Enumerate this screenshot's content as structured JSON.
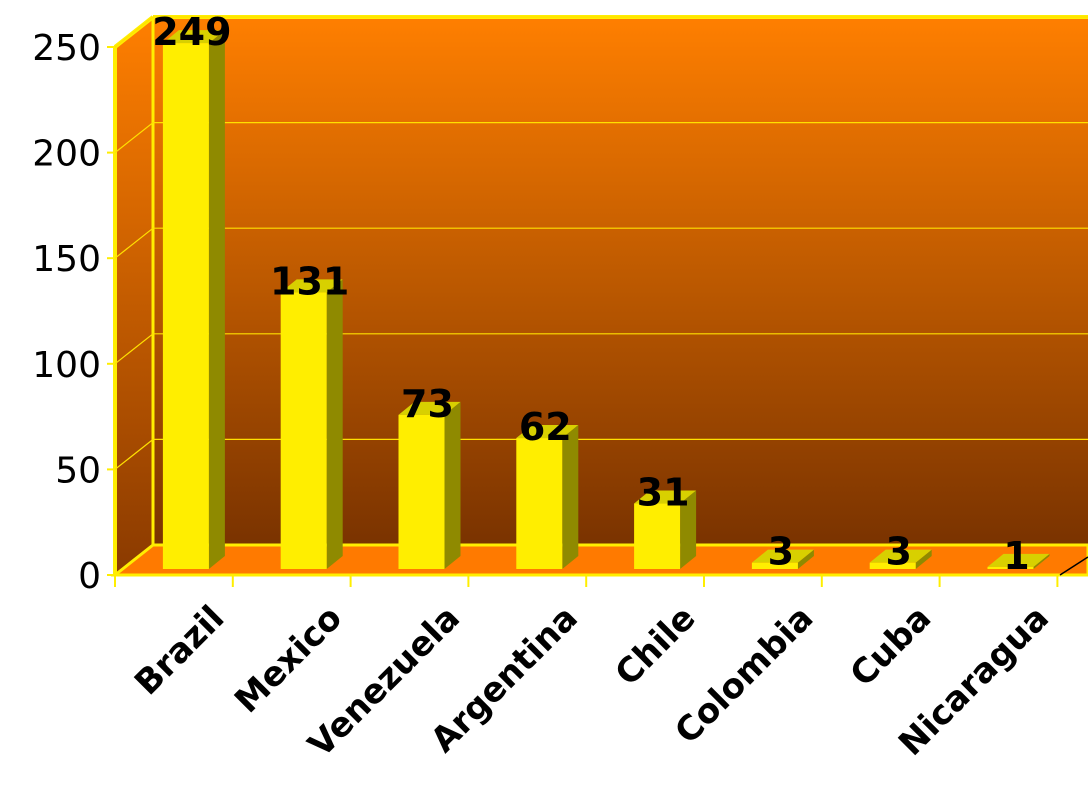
{
  "chart_data": {
    "type": "bar",
    "title": "",
    "xlabel": "",
    "ylabel": "",
    "categories": [
      "Brazil",
      "Mexico",
      "Venezuela",
      "Argentina",
      "Chile",
      "Colombia",
      "Cuba",
      "Nicaragua"
    ],
    "values": [
      249,
      131,
      73,
      62,
      31,
      3,
      3,
      1
    ],
    "ylim": [
      0,
      250
    ],
    "yticks": [
      0,
      50,
      100,
      150,
      200,
      250
    ],
    "grid": true,
    "legend": "none",
    "colors": {
      "bar_front": "#ffee00",
      "bar_side": "#8f8a00",
      "bar_top": "#d8d000",
      "background_top": "#ff7f00",
      "background_bottom": "#7a3300",
      "floor": "#ff7a00",
      "gridline": "#ffe000",
      "frame": "#ffee00"
    }
  }
}
